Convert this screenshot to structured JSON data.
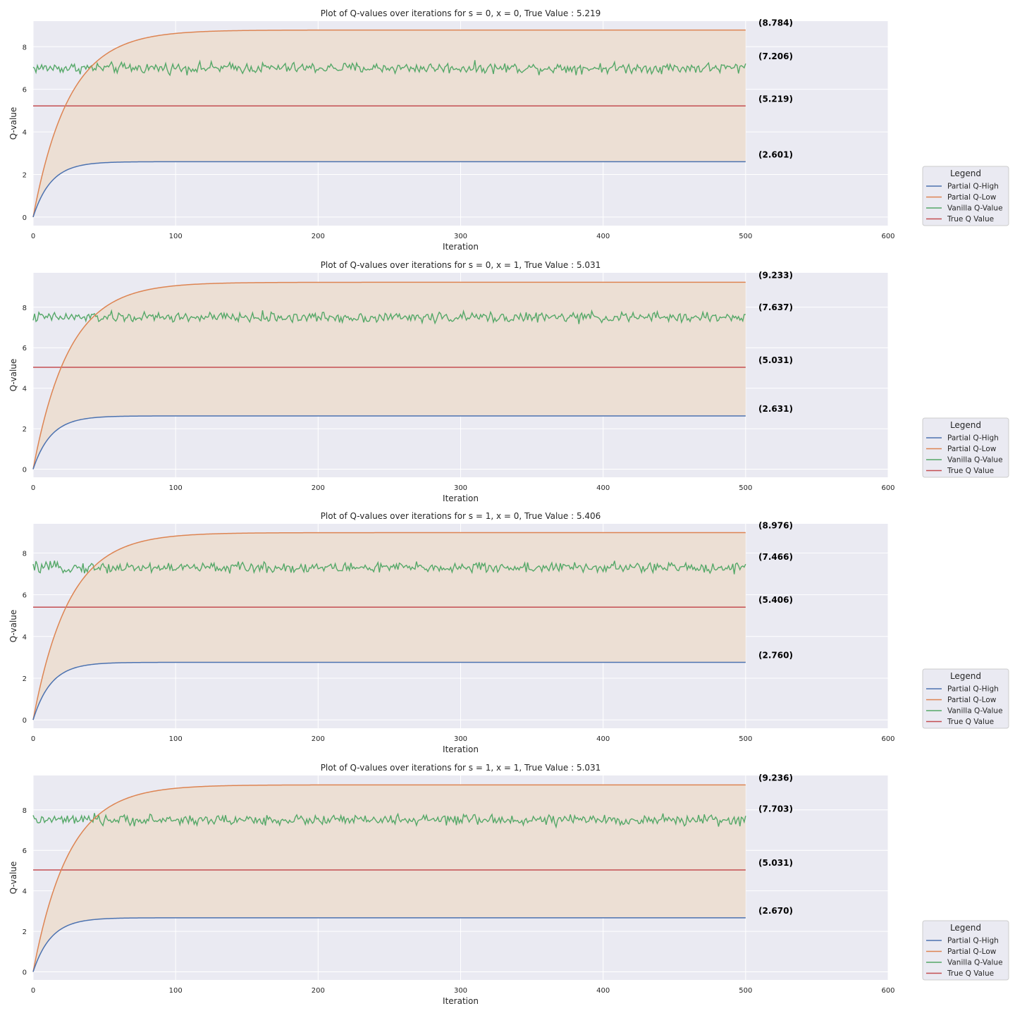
{
  "chart_data": [
    {
      "type": "line",
      "title": "Plot of Q-values over iterations for s = 0, x = 0, True Value : 5.219",
      "xlabel": "Iteration",
      "ylabel": "Q-value",
      "xlim": [
        0,
        600
      ],
      "ylim": [
        -0.4,
        9.2
      ],
      "xticks": [
        0,
        100,
        200,
        300,
        400,
        500,
        600
      ],
      "yticks": [
        0,
        2,
        4,
        6,
        8
      ],
      "iterations": 500,
      "grid": true,
      "legend": {
        "title": "Legend",
        "placement": "right",
        "entries": [
          "Partial Q-High",
          "Partial Q-Low",
          "Vanilla Q-Value",
          "True Q Value"
        ]
      },
      "series": [
        {
          "name": "Partial Q-High",
          "color": "#4c72b0",
          "start": 0,
          "final": 2.601,
          "rate": 0.08
        },
        {
          "name": "Partial Q-Low",
          "color": "#dd8452",
          "start": 0,
          "final": 8.784,
          "rate": 0.04
        },
        {
          "name": "Vanilla Q-Value",
          "color": "#55a868",
          "mean": 7.0,
          "noise": 0.18,
          "final": 7.206
        },
        {
          "name": "True Q Value",
          "color": "#c44e52",
          "constant": 5.219
        }
      ],
      "fill_between": [
        "Partial Q-High",
        "Partial Q-Low"
      ],
      "end_labels": [
        "(8.784)",
        "(7.206)",
        "(5.219)",
        "(2.601)"
      ]
    },
    {
      "type": "line",
      "title": "Plot of Q-values over iterations for s = 0, x = 1, True Value : 5.031",
      "xlabel": "Iteration",
      "ylabel": "Q-value",
      "xlim": [
        0,
        600
      ],
      "ylim": [
        -0.4,
        9.7
      ],
      "xticks": [
        0,
        100,
        200,
        300,
        400,
        500,
        600
      ],
      "yticks": [
        0,
        2,
        4,
        6,
        8
      ],
      "iterations": 500,
      "grid": true,
      "legend": {
        "title": "Legend",
        "placement": "right",
        "entries": [
          "Partial Q-High",
          "Partial Q-Low",
          "Vanilla Q-Value",
          "True Q Value"
        ]
      },
      "series": [
        {
          "name": "Partial Q-High",
          "color": "#4c72b0",
          "start": 0,
          "final": 2.631,
          "rate": 0.08
        },
        {
          "name": "Partial Q-Low",
          "color": "#dd8452",
          "start": 0,
          "final": 9.233,
          "rate": 0.04
        },
        {
          "name": "Vanilla Q-Value",
          "color": "#55a868",
          "mean": 7.5,
          "noise": 0.18,
          "final": 7.637
        },
        {
          "name": "True Q Value",
          "color": "#c44e52",
          "constant": 5.031
        }
      ],
      "fill_between": [
        "Partial Q-High",
        "Partial Q-Low"
      ],
      "end_labels": [
        "(9.233)",
        "(7.637)",
        "(5.031)",
        "(2.631)"
      ]
    },
    {
      "type": "line",
      "title": "Plot of Q-values over iterations for s = 1, x = 0, True Value : 5.406",
      "xlabel": "Iteration",
      "ylabel": "Q-value",
      "xlim": [
        0,
        600
      ],
      "ylim": [
        -0.4,
        9.4
      ],
      "xticks": [
        0,
        100,
        200,
        300,
        400,
        500,
        600
      ],
      "yticks": [
        0,
        2,
        4,
        6,
        8
      ],
      "iterations": 500,
      "grid": true,
      "legend": {
        "title": "Legend",
        "placement": "right",
        "entries": [
          "Partial Q-High",
          "Partial Q-Low",
          "Vanilla Q-Value",
          "True Q Value"
        ]
      },
      "series": [
        {
          "name": "Partial Q-High",
          "color": "#4c72b0",
          "start": 0,
          "final": 2.76,
          "rate": 0.08
        },
        {
          "name": "Partial Q-Low",
          "color": "#dd8452",
          "start": 0,
          "final": 8.976,
          "rate": 0.04
        },
        {
          "name": "Vanilla Q-Value",
          "color": "#55a868",
          "mean": 7.3,
          "noise": 0.18,
          "final": 7.466
        },
        {
          "name": "True Q Value",
          "color": "#c44e52",
          "constant": 5.406
        }
      ],
      "fill_between": [
        "Partial Q-High",
        "Partial Q-Low"
      ],
      "end_labels": [
        "(8.976)",
        "(7.466)",
        "(5.406)",
        "(2.760)"
      ]
    },
    {
      "type": "line",
      "title": "Plot of Q-values over iterations for s = 1, x = 1, True Value : 5.031",
      "xlabel": "Iteration",
      "ylabel": "Q-value",
      "xlim": [
        0,
        600
      ],
      "ylim": [
        -0.4,
        9.7
      ],
      "xticks": [
        0,
        100,
        200,
        300,
        400,
        500,
        600
      ],
      "yticks": [
        0,
        2,
        4,
        6,
        8
      ],
      "iterations": 500,
      "grid": true,
      "legend": {
        "title": "Legend",
        "placement": "right",
        "entries": [
          "Partial Q-High",
          "Partial Q-Low",
          "Vanilla Q-Value",
          "True Q Value"
        ]
      },
      "series": [
        {
          "name": "Partial Q-High",
          "color": "#4c72b0",
          "start": 0,
          "final": 2.67,
          "rate": 0.08
        },
        {
          "name": "Partial Q-Low",
          "color": "#dd8452",
          "start": 0,
          "final": 9.236,
          "rate": 0.04
        },
        {
          "name": "Vanilla Q-Value",
          "color": "#55a868",
          "mean": 7.5,
          "noise": 0.18,
          "final": 7.703
        },
        {
          "name": "True Q Value",
          "color": "#c44e52",
          "constant": 5.031
        }
      ],
      "fill_between": [
        "Partial Q-High",
        "Partial Q-Low"
      ],
      "end_labels": [
        "(9.236)",
        "(7.703)",
        "(5.031)",
        "(2.670)"
      ]
    }
  ],
  "colors": {
    "panel_background": "#eaeaf2",
    "grid": "#ffffff",
    "fill": "#ecdfd4",
    "legend_background": "#eaeaf2",
    "legend_border": "#cccccc",
    "text": "#262626"
  }
}
